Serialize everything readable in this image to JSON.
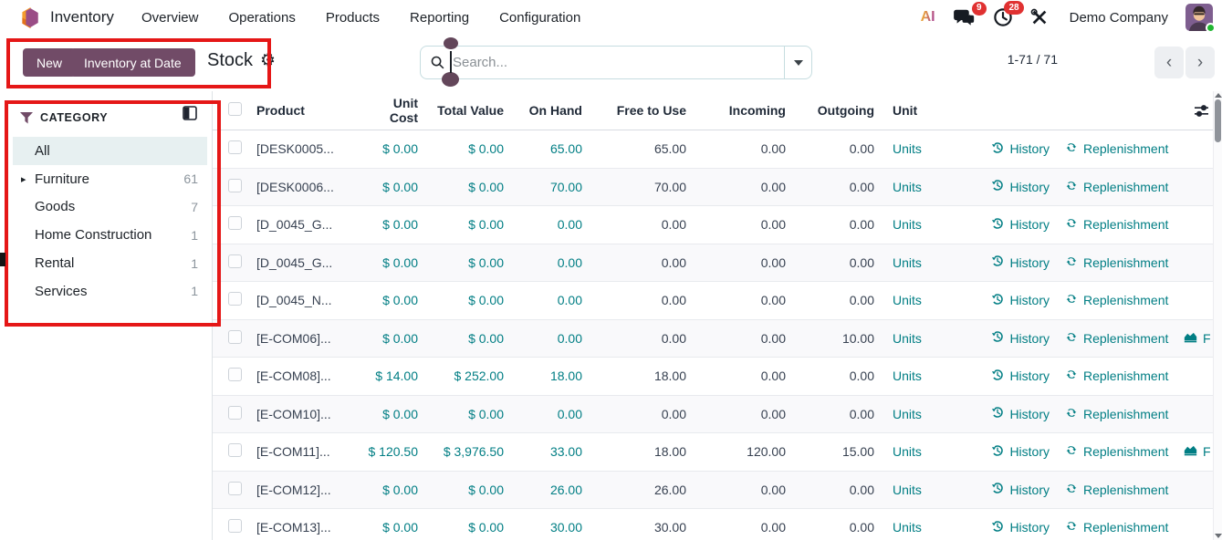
{
  "app": {
    "name": "Inventory",
    "menus": [
      "Overview",
      "Operations",
      "Products",
      "Reporting",
      "Configuration"
    ]
  },
  "topbar": {
    "ai_label": "AI",
    "chat_badge": "9",
    "activity_badge": "28",
    "company": "Demo Company"
  },
  "controls": {
    "new_label": "New",
    "inventory_at_date_label": "Inventory at Date",
    "view_title": "Stock",
    "search_placeholder": "Search...",
    "pager_text": "1-71 / 71"
  },
  "icons": {
    "gear": "⚙",
    "caret_right": "▸",
    "pager_prev": "‹",
    "pager_next": "›"
  },
  "sidebar": {
    "heading": "CATEGORY",
    "items": [
      {
        "label": "All",
        "count": "",
        "selected": true,
        "expandable": false
      },
      {
        "label": "Furniture",
        "count": "61",
        "selected": false,
        "expandable": true
      },
      {
        "label": "Goods",
        "count": "7",
        "selected": false,
        "expandable": false
      },
      {
        "label": "Home Construction",
        "count": "1",
        "selected": false,
        "expandable": false
      },
      {
        "label": "Rental",
        "count": "1",
        "selected": false,
        "expandable": false
      },
      {
        "label": "Services",
        "count": "1",
        "selected": false,
        "expandable": false
      }
    ]
  },
  "table": {
    "headers": [
      "Product",
      "Unit Cost",
      "Total Value",
      "On Hand",
      "Free to Use",
      "Incoming",
      "Outgoing",
      "Unit"
    ],
    "unit_label": "Units",
    "row_actions": {
      "history": "History",
      "replenishment": "Replenishment",
      "forecast": "F"
    },
    "rows": [
      {
        "product": "[DESK0005...",
        "unit_cost": "$ 0.00",
        "total_value": "$ 0.00",
        "on_hand": "65.00",
        "free": "65.00",
        "incoming": "0.00",
        "outgoing": "0.00",
        "forecast": false
      },
      {
        "product": "[DESK0006...",
        "unit_cost": "$ 0.00",
        "total_value": "$ 0.00",
        "on_hand": "70.00",
        "free": "70.00",
        "incoming": "0.00",
        "outgoing": "0.00",
        "forecast": false
      },
      {
        "product": "[D_0045_G...",
        "unit_cost": "$ 0.00",
        "total_value": "$ 0.00",
        "on_hand": "0.00",
        "free": "0.00",
        "incoming": "0.00",
        "outgoing": "0.00",
        "forecast": false
      },
      {
        "product": "[D_0045_G...",
        "unit_cost": "$ 0.00",
        "total_value": "$ 0.00",
        "on_hand": "0.00",
        "free": "0.00",
        "incoming": "0.00",
        "outgoing": "0.00",
        "forecast": false
      },
      {
        "product": "[D_0045_N...",
        "unit_cost": "$ 0.00",
        "total_value": "$ 0.00",
        "on_hand": "0.00",
        "free": "0.00",
        "incoming": "0.00",
        "outgoing": "0.00",
        "forecast": false
      },
      {
        "product": "[E-COM06]...",
        "unit_cost": "$ 0.00",
        "total_value": "$ 0.00",
        "on_hand": "0.00",
        "free": "0.00",
        "incoming": "0.00",
        "outgoing": "10.00",
        "forecast": true
      },
      {
        "product": "[E-COM08]...",
        "unit_cost": "$ 14.00",
        "total_value": "$ 252.00",
        "on_hand": "18.00",
        "free": "18.00",
        "incoming": "0.00",
        "outgoing": "0.00",
        "forecast": false
      },
      {
        "product": "[E-COM10]...",
        "unit_cost": "$ 0.00",
        "total_value": "$ 0.00",
        "on_hand": "0.00",
        "free": "0.00",
        "incoming": "0.00",
        "outgoing": "0.00",
        "forecast": false
      },
      {
        "product": "[E-COM11]...",
        "unit_cost": "$ 120.50",
        "total_value": "$ 3,976.50",
        "on_hand": "33.00",
        "free": "18.00",
        "incoming": "120.00",
        "outgoing": "15.00",
        "forecast": true
      },
      {
        "product": "[E-COM12]...",
        "unit_cost": "$ 0.00",
        "total_value": "$ 0.00",
        "on_hand": "26.00",
        "free": "26.00",
        "incoming": "0.00",
        "outgoing": "0.00",
        "forecast": false
      },
      {
        "product": "[E-COM13]...",
        "unit_cost": "$ 0.00",
        "total_value": "$ 0.00",
        "on_hand": "30.00",
        "free": "30.00",
        "incoming": "0.00",
        "outgoing": "0.00",
        "forecast": false
      }
    ]
  },
  "colors": {
    "accent": "#714B67",
    "link_teal": "#017e84",
    "annotation_red": "#e51717",
    "badge_red": "#e03131",
    "selected_item_bg": "#e7f0f1"
  }
}
